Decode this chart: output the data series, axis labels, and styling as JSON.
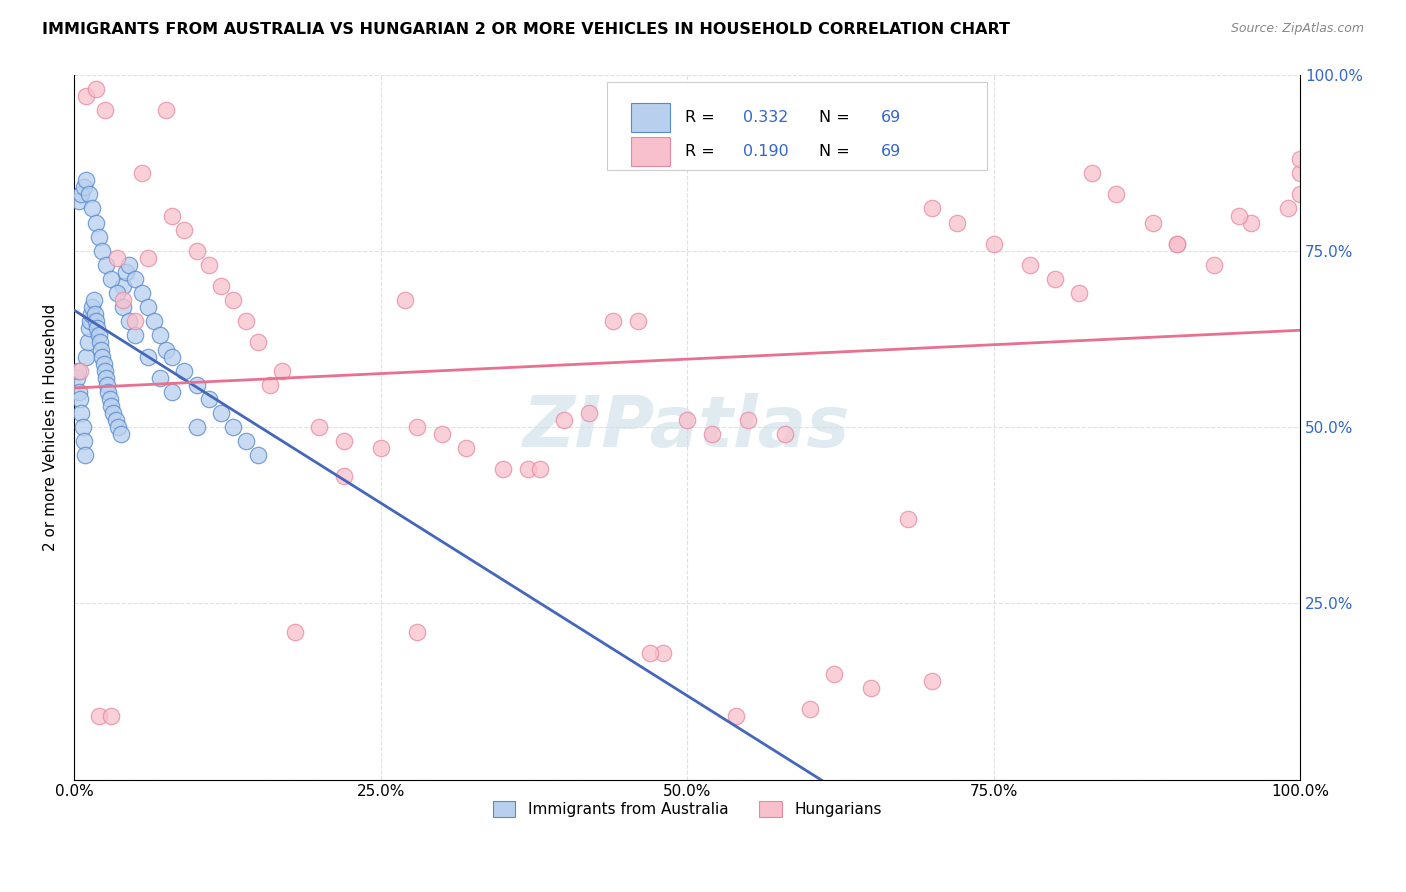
{
  "title": "IMMIGRANTS FROM AUSTRALIA VS HUNGARIAN 2 OR MORE VEHICLES IN HOUSEHOLD CORRELATION CHART",
  "source": "Source: ZipAtlas.com",
  "ylabel": "2 or more Vehicles in Household",
  "legend_label1": "Immigrants from Australia",
  "legend_label2": "Hungarians",
  "r1": "0.332",
  "n1": "69",
  "r2": "0.190",
  "n2": "69",
  "blue_fill": "#b8d0ee",
  "blue_edge": "#5588cc",
  "pink_fill": "#f8c0cc",
  "pink_edge": "#e888a0",
  "line_blue": "#4466bb",
  "line_pink": "#e87090",
  "r_color": "#3366cc",
  "watermark_color": "#ccdde8",
  "grid_color": "#dddddd",
  "watermark": "ZIPatlas",
  "aus_x": [
    0.2,
    0.3,
    0.4,
    0.5,
    0.6,
    0.7,
    0.8,
    0.9,
    1.0,
    1.1,
    1.2,
    1.3,
    1.4,
    1.5,
    1.6,
    1.7,
    1.8,
    1.9,
    2.0,
    2.1,
    2.2,
    2.3,
    2.4,
    2.5,
    2.6,
    2.7,
    2.8,
    2.9,
    3.0,
    3.2,
    3.4,
    3.6,
    3.8,
    4.0,
    4.2,
    4.5,
    5.0,
    5.5,
    6.0,
    6.5,
    7.0,
    7.5,
    8.0,
    9.0,
    10.0,
    11.0,
    12.0,
    13.0,
    14.0,
    15.0,
    0.4,
    0.6,
    0.8,
    1.0,
    1.2,
    1.5,
    1.8,
    2.0,
    2.3,
    2.6,
    3.0,
    3.5,
    4.0,
    4.5,
    5.0,
    6.0,
    7.0,
    8.0,
    10.0
  ],
  "aus_y": [
    57.0,
    58.0,
    55.0,
    54.0,
    52.0,
    50.0,
    48.0,
    46.0,
    60.0,
    62.0,
    64.0,
    65.0,
    66.0,
    67.0,
    68.0,
    66.0,
    65.0,
    64.0,
    63.0,
    62.0,
    61.0,
    60.0,
    59.0,
    58.0,
    57.0,
    56.0,
    55.0,
    54.0,
    53.0,
    52.0,
    51.0,
    50.0,
    49.0,
    70.0,
    72.0,
    73.0,
    71.0,
    69.0,
    67.0,
    65.0,
    63.0,
    61.0,
    60.0,
    58.0,
    56.0,
    54.0,
    52.0,
    50.0,
    48.0,
    46.0,
    82.0,
    83.0,
    84.0,
    85.0,
    83.0,
    81.0,
    79.0,
    77.0,
    75.0,
    73.0,
    71.0,
    69.0,
    67.0,
    65.0,
    63.0,
    60.0,
    57.0,
    55.0,
    50.0
  ],
  "hun_x": [
    0.5,
    1.0,
    1.8,
    2.5,
    3.5,
    4.0,
    5.0,
    6.0,
    7.5,
    9.0,
    10.0,
    11.0,
    12.0,
    13.0,
    14.0,
    15.0,
    17.0,
    18.0,
    20.0,
    22.0,
    25.0,
    27.0,
    28.0,
    30.0,
    32.0,
    35.0,
    37.0,
    40.0,
    42.0,
    44.0,
    46.0,
    48.0,
    50.0,
    52.0,
    55.0,
    58.0,
    60.0,
    62.0,
    65.0,
    68.0,
    70.0,
    72.0,
    75.0,
    78.0,
    80.0,
    82.0,
    85.0,
    88.0,
    90.0,
    93.0,
    96.0,
    99.0,
    100.0,
    100.0,
    100.0,
    2.0,
    3.0,
    5.5,
    8.0,
    16.0,
    22.0,
    28.0,
    38.0,
    47.0,
    54.0,
    70.0,
    83.0,
    90.0,
    95.0
  ],
  "hun_y": [
    58.0,
    97.0,
    98.0,
    95.0,
    74.0,
    68.0,
    65.0,
    74.0,
    95.0,
    78.0,
    75.0,
    73.0,
    70.0,
    68.0,
    65.0,
    62.0,
    58.0,
    21.0,
    50.0,
    48.0,
    47.0,
    68.0,
    50.0,
    49.0,
    47.0,
    44.0,
    44.0,
    51.0,
    52.0,
    65.0,
    65.0,
    18.0,
    51.0,
    49.0,
    51.0,
    49.0,
    10.0,
    15.0,
    13.0,
    37.0,
    81.0,
    79.0,
    76.0,
    73.0,
    71.0,
    69.0,
    83.0,
    79.0,
    76.0,
    73.0,
    79.0,
    81.0,
    83.0,
    86.0,
    88.0,
    9.0,
    9.0,
    86.0,
    80.0,
    56.0,
    43.0,
    21.0,
    44.0,
    18.0,
    9.0,
    14.0,
    86.0,
    76.0,
    80.0
  ]
}
